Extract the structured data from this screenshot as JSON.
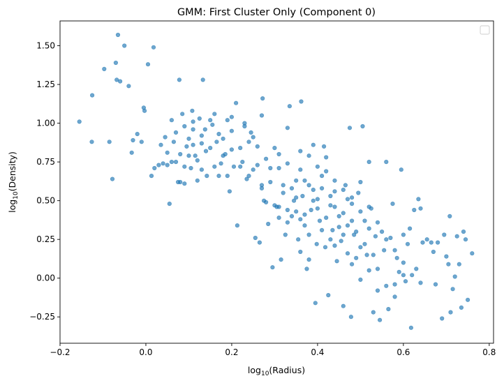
{
  "chart_data": {
    "type": "scatter",
    "title": "GMM: First Cluster Only (Component 0)",
    "xlabel": "log",
    "xlabel_sub": "10",
    "xlabel_suffix": "(Radius)",
    "ylabel": "log",
    "ylabel_sub": "10",
    "ylabel_suffix": "(Density)",
    "xlim": [
      -0.2,
      0.81
    ],
    "ylim": [
      -0.42,
      1.66
    ],
    "xticks": [
      -0.2,
      0.0,
      0.2,
      0.4,
      0.6,
      0.8
    ],
    "xtick_labels": [
      "−0.2",
      "0.0",
      "0.2",
      "0.4",
      "0.6",
      "0.8"
    ],
    "yticks": [
      -0.25,
      0.0,
      0.25,
      0.5,
      0.75,
      1.0,
      1.25,
      1.5
    ],
    "ytick_labels": [
      "−0.25",
      "0.00",
      "0.25",
      "0.50",
      "0.75",
      "1.00",
      "1.25",
      "1.50"
    ],
    "grid": false,
    "legend": "top-right, empty",
    "point_color": "#1f77b4",
    "point_alpha": 0.65,
    "points": [
      [
        -0.155,
        1.01
      ],
      [
        -0.125,
        1.18
      ],
      [
        -0.126,
        0.88
      ],
      [
        -0.097,
        1.35
      ],
      [
        -0.085,
        0.88
      ],
      [
        -0.078,
        0.64
      ],
      [
        -0.07,
        1.39
      ],
      [
        -0.068,
        1.28
      ],
      [
        -0.065,
        1.57
      ],
      [
        -0.06,
        1.27
      ],
      [
        -0.05,
        1.5
      ],
      [
        -0.04,
        1.24
      ],
      [
        -0.033,
        0.81
      ],
      [
        -0.03,
        0.89
      ],
      [
        -0.02,
        0.93
      ],
      [
        -0.01,
        0.88
      ],
      [
        -0.005,
        1.1
      ],
      [
        -0.003,
        1.08
      ],
      [
        0.005,
        1.38
      ],
      [
        0.013,
        0.66
      ],
      [
        0.018,
        1.49
      ],
      [
        0.02,
        0.71
      ],
      [
        0.035,
        0.86
      ],
      [
        0.04,
        0.74
      ],
      [
        0.045,
        0.91
      ],
      [
        0.05,
        0.73
      ],
      [
        0.055,
        0.48
      ],
      [
        0.06,
        1.02
      ],
      [
        0.065,
        0.88
      ],
      [
        0.07,
        0.75
      ],
      [
        0.075,
        0.62
      ],
      [
        0.078,
        1.28
      ],
      [
        0.08,
        0.8
      ],
      [
        0.085,
        1.06
      ],
      [
        0.09,
        0.61
      ],
      [
        0.095,
        0.85
      ],
      [
        0.1,
        0.9
      ],
      [
        0.105,
        0.71
      ],
      [
        0.108,
        1.08
      ],
      [
        0.11,
        0.96
      ],
      [
        0.115,
        0.79
      ],
      [
        0.12,
        0.63
      ],
      [
        0.125,
        1.03
      ],
      [
        0.13,
        0.87
      ],
      [
        0.133,
        1.28
      ],
      [
        0.138,
        0.96
      ],
      [
        0.142,
        0.66
      ],
      [
        0.15,
        0.84
      ],
      [
        0.155,
        0.99
      ],
      [
        0.16,
        1.06
      ],
      [
        0.165,
        0.88
      ],
      [
        0.17,
        0.66
      ],
      [
        0.175,
        0.74
      ],
      [
        0.18,
        0.9
      ],
      [
        0.185,
        0.8
      ],
      [
        0.19,
        1.02
      ],
      [
        0.195,
        0.56
      ],
      [
        0.2,
        0.95
      ],
      [
        0.205,
        0.72
      ],
      [
        0.21,
        1.13
      ],
      [
        0.213,
        0.34
      ],
      [
        0.22,
        0.84
      ],
      [
        0.225,
        0.75
      ],
      [
        0.23,
        1.0
      ],
      [
        0.235,
        0.64
      ],
      [
        0.24,
        0.88
      ],
      [
        0.245,
        0.94
      ],
      [
        0.25,
        0.7
      ],
      [
        0.255,
        0.26
      ],
      [
        0.26,
        0.85
      ],
      [
        0.265,
        0.23
      ],
      [
        0.27,
        0.6
      ],
      [
        0.272,
        1.16
      ],
      [
        0.275,
        0.5
      ],
      [
        0.28,
        0.77
      ],
      [
        0.285,
        0.35
      ],
      [
        0.29,
        0.62
      ],
      [
        0.295,
        0.07
      ],
      [
        0.3,
        0.84
      ],
      [
        0.305,
        0.46
      ],
      [
        0.31,
        0.71
      ],
      [
        0.315,
        0.12
      ],
      [
        0.32,
        0.55
      ],
      [
        0.325,
        0.28
      ],
      [
        0.33,
        0.97
      ],
      [
        0.335,
        1.11
      ],
      [
        0.34,
        0.4
      ],
      [
        0.345,
        0.5
      ],
      [
        0.35,
        0.63
      ],
      [
        0.355,
        0.25
      ],
      [
        0.36,
        0.82
      ],
      [
        0.362,
        1.14
      ],
      [
        0.365,
        0.53
      ],
      [
        0.37,
        0.34
      ],
      [
        0.375,
        0.06
      ],
      [
        0.38,
        0.6
      ],
      [
        0.385,
        0.44
      ],
      [
        0.39,
        0.86
      ],
      [
        0.395,
        -0.16
      ],
      [
        0.398,
        0.22
      ],
      [
        0.4,
        0.51
      ],
      [
        0.405,
        0.37
      ],
      [
        0.41,
        0.66
      ],
      [
        0.415,
        0.85
      ],
      [
        0.418,
        0.2
      ],
      [
        0.42,
        0.78
      ],
      [
        0.425,
        -0.11
      ],
      [
        0.43,
        0.47
      ],
      [
        0.435,
        0.31
      ],
      [
        0.44,
        0.56
      ],
      [
        0.445,
        0.11
      ],
      [
        0.45,
        0.4
      ],
      [
        0.455,
        0.24
      ],
      [
        0.46,
        -0.18
      ],
      [
        0.465,
        0.6
      ],
      [
        0.47,
        0.34
      ],
      [
        0.475,
        0.97
      ],
      [
        0.478,
        -0.25
      ],
      [
        0.48,
        0.48
      ],
      [
        0.485,
        0.28
      ],
      [
        0.49,
        0.13
      ],
      [
        0.495,
        0.55
      ],
      [
        0.5,
        -0.01
      ],
      [
        0.505,
        0.98
      ],
      [
        0.51,
        0.37
      ],
      [
        0.515,
        0.15
      ],
      [
        0.52,
        0.75
      ],
      [
        0.525,
        0.45
      ],
      [
        0.53,
        -0.22
      ],
      [
        0.535,
        0.27
      ],
      [
        0.54,
        0.06
      ],
      [
        0.545,
        -0.27
      ],
      [
        0.55,
        0.3
      ],
      [
        0.555,
        0.18
      ],
      [
        0.56,
        0.75
      ],
      [
        0.565,
        -0.2
      ],
      [
        0.57,
        0.26
      ],
      [
        0.575,
        0.48
      ],
      [
        0.58,
        -0.04
      ],
      [
        0.585,
        0.13
      ],
      [
        0.59,
        0.04
      ],
      [
        0.595,
        0.7
      ],
      [
        0.6,
        0.28
      ],
      [
        0.605,
        -0.02
      ],
      [
        0.61,
        0.22
      ],
      [
        0.615,
        0.32
      ],
      [
        0.618,
        -0.32
      ],
      [
        0.625,
        0.44
      ],
      [
        0.63,
        0.06
      ],
      [
        0.635,
        0.51
      ],
      [
        0.64,
        0.45
      ],
      [
        0.645,
        0.23
      ],
      [
        0.655,
        0.25
      ],
      [
        0.665,
        0.23
      ],
      [
        0.67,
        0.17
      ],
      [
        0.675,
        -0.04
      ],
      [
        0.68,
        0.23
      ],
      [
        0.69,
        -0.26
      ],
      [
        0.695,
        0.28
      ],
      [
        0.7,
        0.14
      ],
      [
        0.705,
        0.09
      ],
      [
        0.708,
        0.4
      ],
      [
        0.71,
        -0.22
      ],
      [
        0.715,
        -0.07
      ],
      [
        0.72,
        0.01
      ],
      [
        0.725,
        0.27
      ],
      [
        0.73,
        0.09
      ],
      [
        0.735,
        -0.19
      ],
      [
        0.74,
        0.3
      ],
      [
        0.745,
        0.25
      ],
      [
        0.75,
        -0.14
      ],
      [
        0.76,
        0.16
      ],
      [
        0.28,
        0.49
      ],
      [
        0.3,
        0.47
      ],
      [
        0.31,
        0.46
      ],
      [
        0.32,
        0.6
      ],
      [
        0.33,
        0.36
      ],
      [
        0.34,
        0.58
      ],
      [
        0.35,
        0.43
      ],
      [
        0.36,
        0.38
      ],
      [
        0.37,
        0.63
      ],
      [
        0.38,
        0.28
      ],
      [
        0.39,
        0.5
      ],
      [
        0.4,
        0.45
      ],
      [
        0.41,
        0.58
      ],
      [
        0.42,
        0.39
      ],
      [
        0.43,
        0.53
      ],
      [
        0.44,
        0.46
      ],
      [
        0.45,
        0.33
      ],
      [
        0.46,
        0.42
      ],
      [
        0.47,
        0.51
      ],
      [
        0.48,
        0.37
      ],
      [
        0.49,
        0.3
      ],
      [
        0.5,
        0.43
      ],
      [
        0.51,
        0.22
      ],
      [
        0.52,
        0.32
      ],
      [
        0.53,
        0.15
      ],
      [
        0.22,
        0.72
      ],
      [
        0.24,
        0.66
      ],
      [
        0.26,
        0.73
      ],
      [
        0.27,
        0.58
      ],
      [
        0.29,
        0.71
      ],
      [
        0.12,
        0.76
      ],
      [
        0.14,
        0.82
      ],
      [
        0.16,
        0.72
      ],
      [
        0.18,
        0.79
      ],
      [
        0.2,
        0.83
      ],
      [
        0.09,
        0.98
      ],
      [
        0.11,
        0.86
      ],
      [
        0.13,
        0.92
      ],
      [
        0.15,
        1.02
      ],
      [
        0.17,
        0.93
      ],
      [
        0.2,
        1.04
      ],
      [
        0.23,
        0.98
      ],
      [
        0.25,
        0.91
      ],
      [
        0.27,
        1.05
      ],
      [
        0.31,
        0.8
      ],
      [
        0.33,
        0.74
      ],
      [
        0.36,
        0.7
      ],
      [
        0.38,
        0.79
      ],
      [
        0.4,
        0.72
      ],
      [
        0.42,
        0.69
      ],
      [
        0.44,
        0.63
      ],
      [
        0.46,
        0.57
      ],
      [
        0.48,
        0.52
      ],
      [
        0.5,
        0.62
      ],
      [
        0.52,
        0.46
      ],
      [
        0.54,
        0.36
      ],
      [
        0.56,
        0.25
      ],
      [
        0.58,
        0.18
      ],
      [
        0.6,
        0.1
      ],
      [
        0.62,
        0.02
      ],
      [
        0.44,
        0.21
      ],
      [
        0.46,
        0.28
      ],
      [
        0.48,
        0.09
      ],
      [
        0.5,
        0.2
      ],
      [
        0.52,
        0.05
      ],
      [
        0.54,
        -0.08
      ],
      [
        0.56,
        -0.05
      ],
      [
        0.58,
        -0.12
      ],
      [
        0.6,
        0.02
      ],
      [
        0.64,
        -0.03
      ],
      [
        0.36,
        0.17
      ],
      [
        0.38,
        0.12
      ],
      [
        0.41,
        0.31
      ],
      [
        0.43,
        0.25
      ],
      [
        0.47,
        0.16
      ],
      [
        0.31,
        0.39
      ],
      [
        0.33,
        0.44
      ],
      [
        0.35,
        0.52
      ],
      [
        0.37,
        0.41
      ],
      [
        0.39,
        0.57
      ],
      [
        0.06,
        0.75
      ],
      [
        0.08,
        0.62
      ],
      [
        0.1,
        0.79
      ],
      [
        0.13,
        0.7
      ],
      [
        0.19,
        0.66
      ],
      [
        0.03,
        0.73
      ],
      [
        0.05,
        0.81
      ],
      [
        0.07,
        0.94
      ],
      [
        0.09,
        0.72
      ],
      [
        0.11,
        1.01
      ]
    ]
  }
}
